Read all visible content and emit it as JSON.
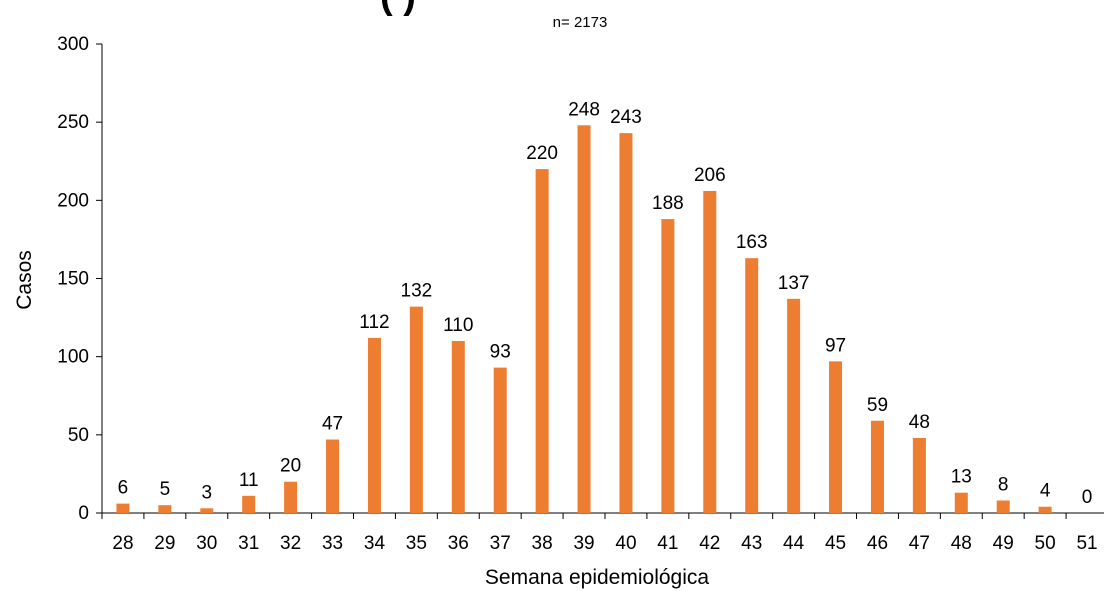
{
  "chart_data": {
    "type": "bar",
    "title_partial": "(                        )",
    "subtitle": "n= 2173",
    "xlabel": "Semana epidemiológica",
    "ylabel": "Casos",
    "categories": [
      "28",
      "29",
      "30",
      "31",
      "32",
      "33",
      "34",
      "35",
      "36",
      "37",
      "38",
      "39",
      "40",
      "41",
      "42",
      "43",
      "44",
      "45",
      "46",
      "47",
      "48",
      "49",
      "50",
      "51"
    ],
    "values": [
      6,
      5,
      3,
      11,
      20,
      47,
      112,
      132,
      110,
      93,
      220,
      248,
      243,
      188,
      206,
      163,
      137,
      97,
      59,
      48,
      13,
      8,
      4,
      0
    ],
    "ylim": [
      0,
      300
    ],
    "yticks": [
      0,
      50,
      100,
      150,
      200,
      250,
      300
    ],
    "grid": false,
    "legend": "none",
    "bar_color": "#ED7D31",
    "axis_color": "#000000"
  }
}
